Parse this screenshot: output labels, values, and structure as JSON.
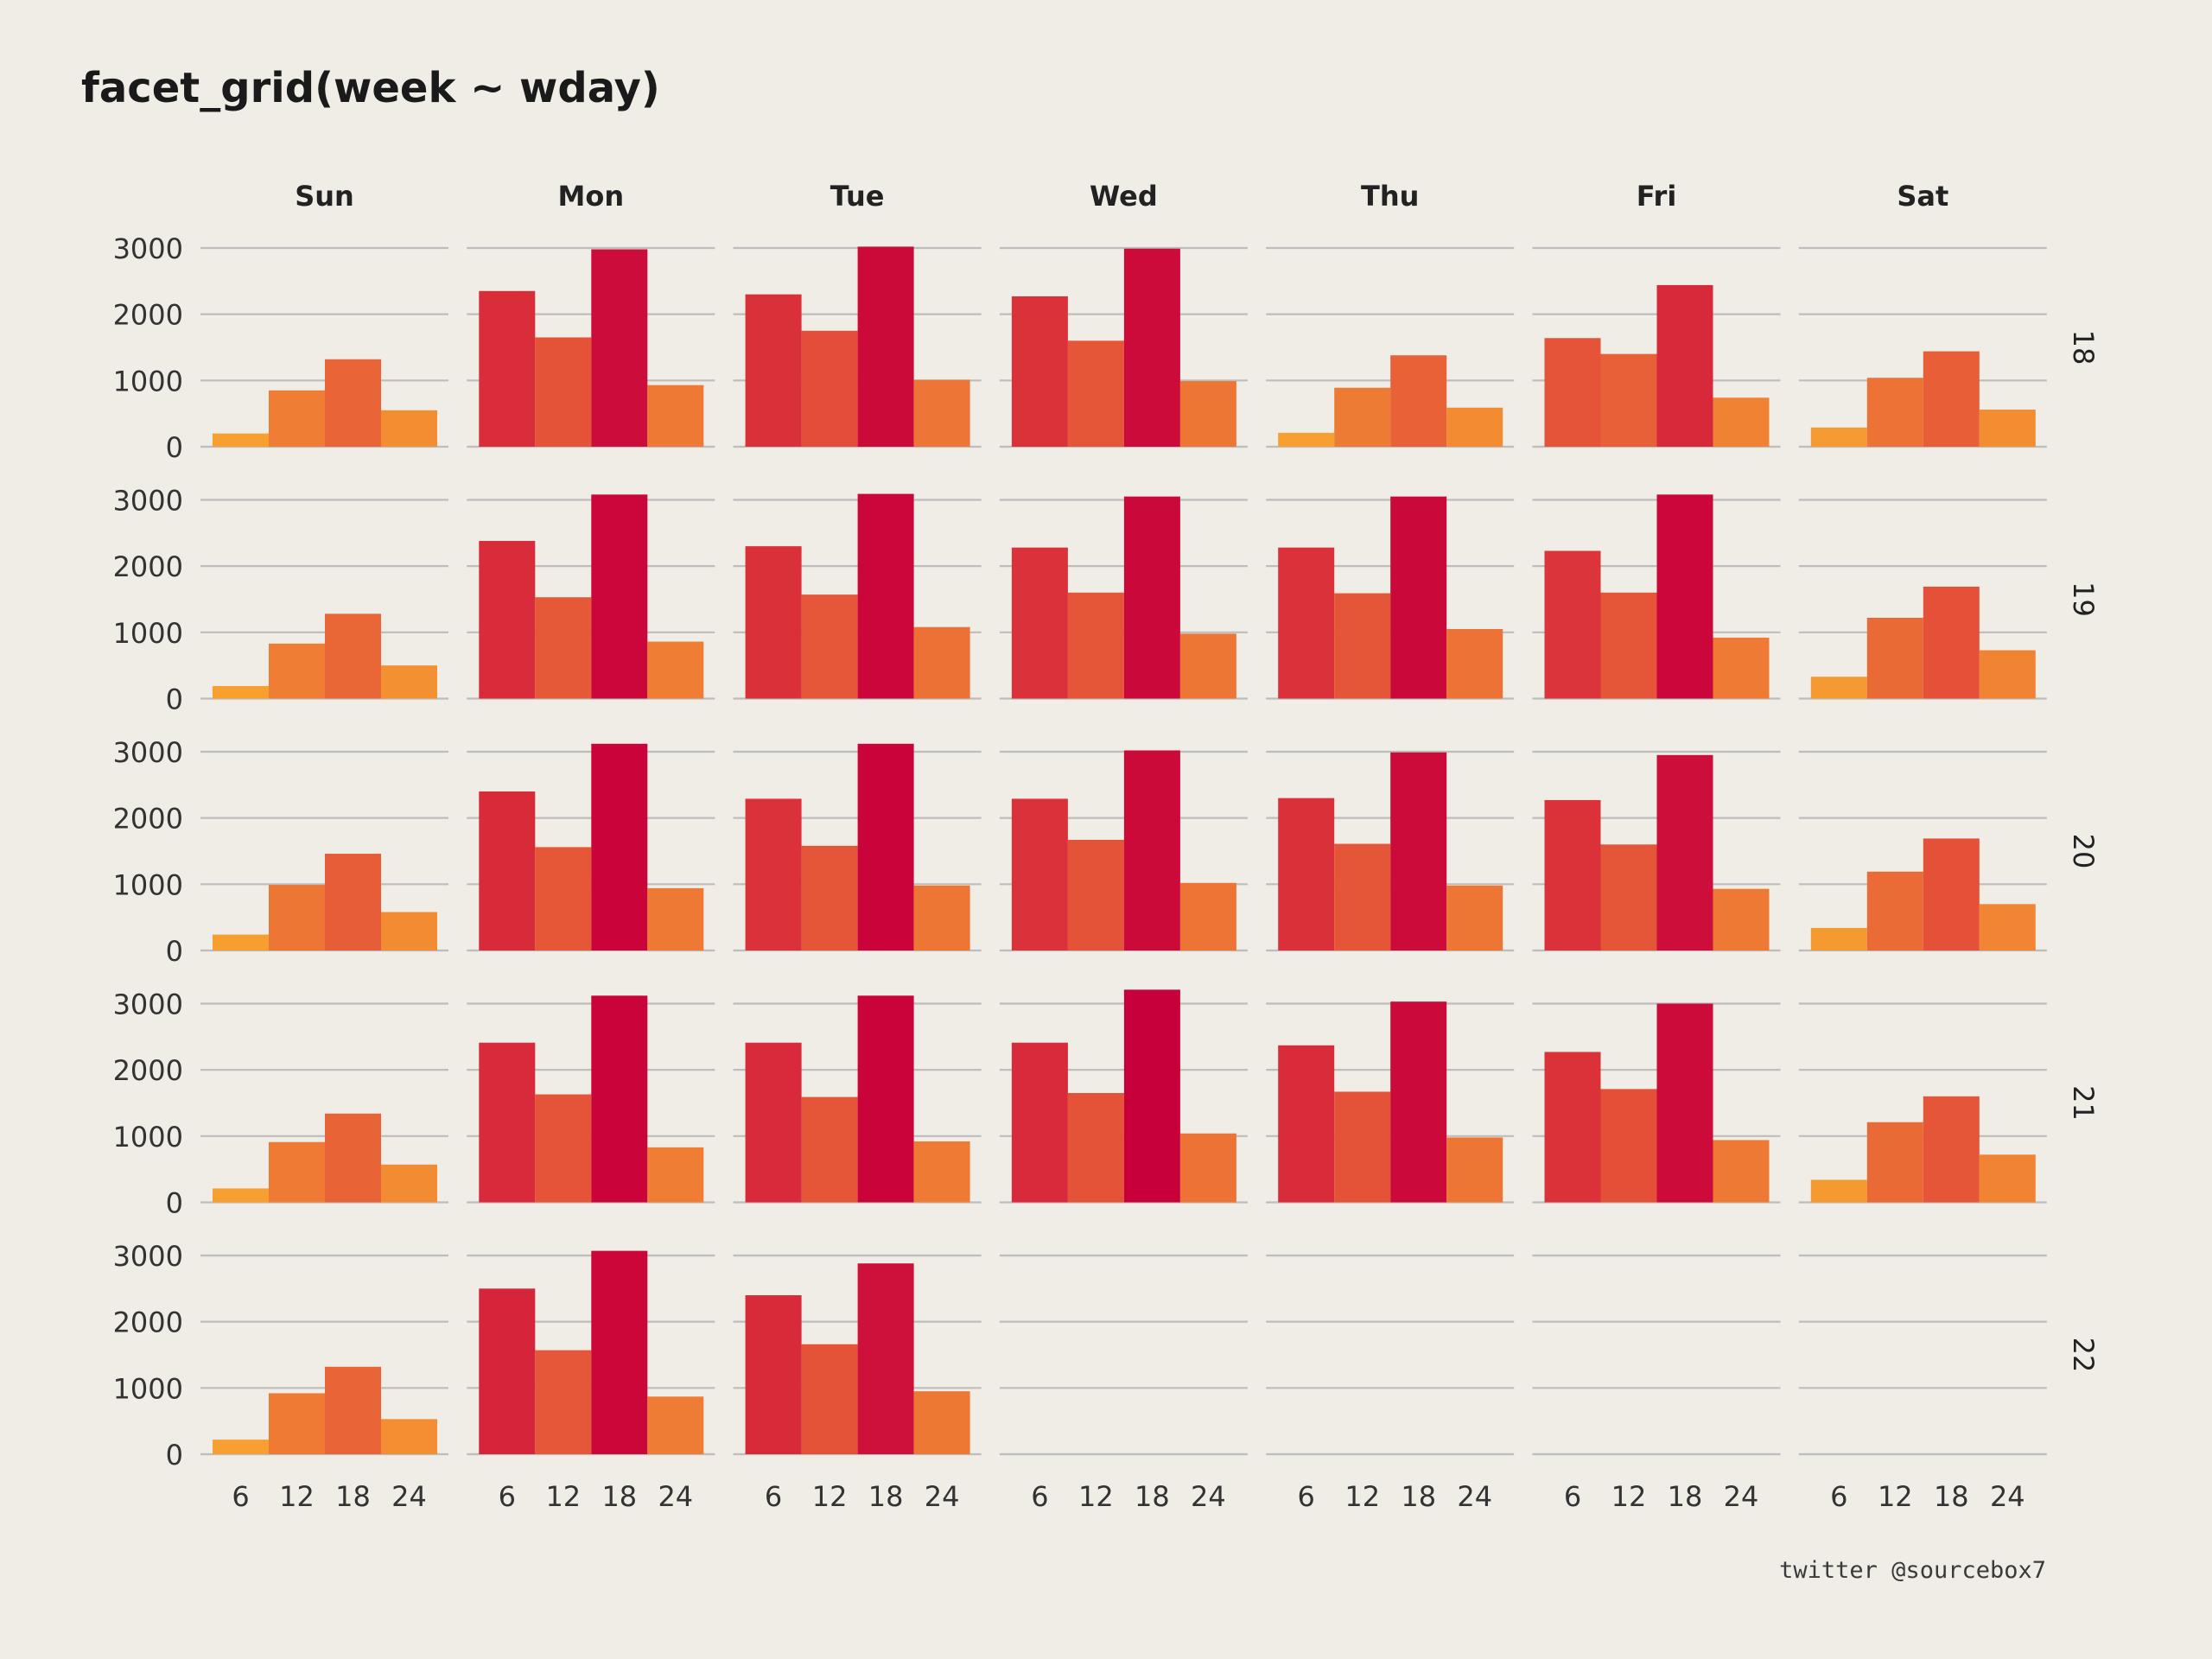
{
  "chart_data": {
    "type": "bar",
    "title": "facet_grid(week ~ wday)",
    "col_facets": [
      "Sun",
      "Mon",
      "Tue",
      "Wed",
      "Thu",
      "Fri",
      "Sat"
    ],
    "row_facets": [
      "18",
      "19",
      "20",
      "21",
      "22"
    ],
    "categories": [
      "6",
      "12",
      "18",
      "24"
    ],
    "x_ticks": [
      "6",
      "12",
      "18",
      "24"
    ],
    "y_ticks": [
      "0",
      "1000",
      "2000",
      "3000"
    ],
    "ylim": [
      0,
      3300
    ],
    "grid": "horizontal",
    "color_scale": {
      "low": "#f7a030",
      "mid": "#e0403a",
      "high": "#c8003a",
      "range": [
        200,
        3200
      ]
    },
    "values": [
      [
        [
          200,
          850,
          1320,
          550
        ],
        [
          2350,
          1650,
          2980,
          930
        ],
        [
          2300,
          1750,
          3020,
          1010
        ],
        [
          2270,
          1600,
          2990,
          990
        ],
        [
          210,
          890,
          1380,
          590
        ],
        [
          1640,
          1400,
          2440,
          740
        ],
        [
          290,
          1040,
          1440,
          560
        ]
      ],
      [
        [
          190,
          830,
          1280,
          500
        ],
        [
          2380,
          1530,
          3080,
          860
        ],
        [
          2300,
          1570,
          3090,
          1080
        ],
        [
          2280,
          1600,
          3050,
          980
        ],
        [
          2280,
          1590,
          3050,
          1050
        ],
        [
          2230,
          1600,
          3080,
          920
        ],
        [
          330,
          1220,
          1690,
          730
        ]
      ],
      [
        [
          240,
          990,
          1460,
          580
        ],
        [
          2400,
          1560,
          3120,
          940
        ],
        [
          2290,
          1580,
          3120,
          980
        ],
        [
          2290,
          1670,
          3020,
          1020
        ],
        [
          2300,
          1610,
          2990,
          980
        ],
        [
          2270,
          1600,
          2950,
          930
        ],
        [
          340,
          1190,
          1690,
          700
        ]
      ],
      [
        [
          210,
          910,
          1340,
          570
        ],
        [
          2410,
          1630,
          3120,
          830
        ],
        [
          2410,
          1590,
          3120,
          920
        ],
        [
          2410,
          1650,
          3210,
          1040
        ],
        [
          2370,
          1670,
          3030,
          980
        ],
        [
          2270,
          1710,
          3000,
          940
        ],
        [
          340,
          1210,
          1600,
          720
        ]
      ],
      [
        [
          220,
          920,
          1320,
          530
        ],
        [
          2500,
          1570,
          3070,
          870
        ],
        [
          2400,
          1660,
          2880,
          950
        ],
        null,
        null,
        null,
        null
      ]
    ]
  },
  "credit": "twitter @sourcebox7"
}
